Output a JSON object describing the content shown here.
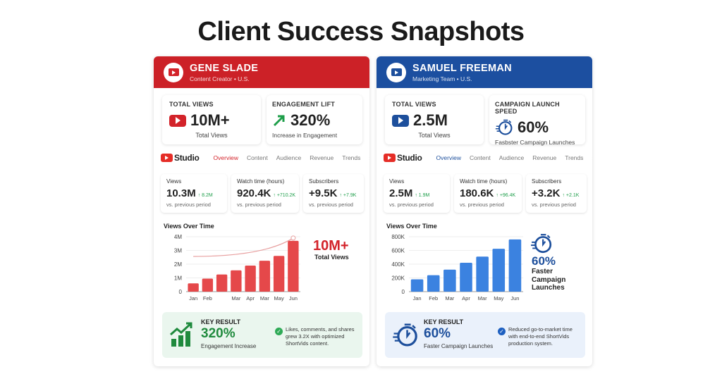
{
  "page_title": "Client Success Snapshots",
  "cards": [
    {
      "accent": "#d3232a",
      "header_bg": "#cc2127",
      "name": "GENE SLADE",
      "subtitle": "Content Creator • U.S.",
      "stat1": {
        "label": "TOTAL VIEWS",
        "value": "10M+",
        "sub": "Total Views",
        "icon": "youtube-play-icon"
      },
      "stat2": {
        "label": "ENGAGEMENT LIFT",
        "value": "320%",
        "sub": "Increase in Engagement",
        "icon": "trend-up-arrow-icon"
      },
      "studio": "Studio",
      "tabs": [
        "Overview",
        "Content",
        "Audience",
        "Revenue",
        "Trends"
      ],
      "active_tab": "Overview",
      "metrics": [
        {
          "label": "Views",
          "value": "10.3M",
          "delta": "↑ 8.2M",
          "cmp": "vs. previous period"
        },
        {
          "label": "Watch time (hours)",
          "value": "920.4K",
          "delta": "↑ +710.2K",
          "cmp": "vs. previous period"
        },
        {
          "label": "Subscribers",
          "value": "+9.5K",
          "delta": "↑ +7.9K",
          "cmp": "vs. previous period"
        }
      ],
      "chart_data": {
        "type": "bar",
        "title": "Views Over Time",
        "categories": [
          "Jan",
          "Feb",
          "",
          "Mar",
          "Apr",
          "Mar",
          "May",
          "Jun"
        ],
        "values": [
          600000,
          950000,
          1250000,
          1550000,
          1900000,
          2250000,
          2600000,
          3700000
        ],
        "ylim": [
          0,
          4000000
        ],
        "yticks": [
          "0",
          "1M",
          "2M",
          "3M",
          "4M"
        ],
        "color": "#e5484a",
        "trend_line": true,
        "grid": true
      },
      "side": {
        "value": "10M+",
        "label": "Total Views"
      },
      "key_result": {
        "label": "KEY RESULT",
        "value": "320%",
        "sub": "Engagement Increase",
        "text": "Likes, comments, and shares grew 3.2X with optimized ShortVids content.",
        "bg": "#eaf6ee",
        "color": "#1f8a3d",
        "icon": "bar-chart-growth-icon"
      }
    },
    {
      "accent": "#1d4f9c",
      "header_bg": "#1c4fa0",
      "name": "SAMUEL FREEMAN",
      "subtitle": "Marketing Team • U.S.",
      "stat1": {
        "label": "TOTAL VIEWS",
        "value": "2.5M",
        "sub": "Total Views",
        "icon": "youtube-play-icon"
      },
      "stat2": {
        "label": "CAMPAIGN LAUNCH SPEED",
        "value": "60%",
        "sub": "Fasbster Campaign Launches",
        "icon": "stopwatch-icon"
      },
      "studio": "Studio",
      "tabs": [
        "Overview",
        "Content",
        "Audience",
        "Revenue",
        "Trends"
      ],
      "active_tab": "Overview",
      "metrics": [
        {
          "label": "Views",
          "value": "2.5M",
          "delta": "↑ 1.9M",
          "cmp": "vs. previous period"
        },
        {
          "label": "Watch time (hours)",
          "value": "180.6K",
          "delta": "↑ +96.4K",
          "cmp": "vs. previous period"
        },
        {
          "label": "Subscribers",
          "value": "+3.2K",
          "delta": "↑ +2.1K",
          "cmp": "vs. previous period"
        }
      ],
      "chart_data": {
        "type": "bar",
        "title": "Views Over Time",
        "categories": [
          "Jan",
          "Feb",
          "Mar",
          "Apr",
          "Mar",
          "May",
          "Jun"
        ],
        "values": [
          180000,
          240000,
          320000,
          420000,
          510000,
          625000,
          760000
        ],
        "ylim": [
          0,
          800000
        ],
        "yticks": [
          "0",
          "200K",
          "400K",
          "600K",
          "800K"
        ],
        "color": "#3b82e0",
        "trend_line": false,
        "grid": true
      },
      "side": {
        "value": "60%",
        "label": "Faster Campaign Launches"
      },
      "key_result": {
        "label": "KEY RESULT",
        "value": "60%",
        "sub": "Faster Campaign Launches",
        "text": "Reduced go-to-market time with end-to-end ShortVids production system.",
        "bg": "#eaf1fb",
        "color": "#1d4f9c",
        "icon": "stopwatch-icon"
      }
    }
  ]
}
